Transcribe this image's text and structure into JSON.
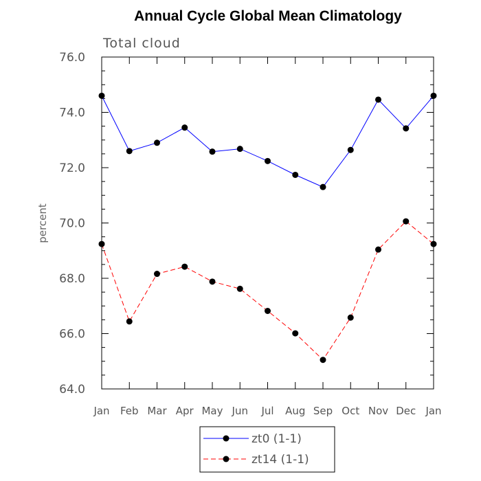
{
  "chart_data": {
    "type": "line",
    "title": "Annual Cycle Global Mean Climatology",
    "subtitle": "Total cloud",
    "xlabel": "",
    "ylabel": "percent",
    "categories": [
      "Jan",
      "Feb",
      "Mar",
      "Apr",
      "May",
      "Jun",
      "Jul",
      "Aug",
      "Sep",
      "Oct",
      "Nov",
      "Dec",
      "Jan"
    ],
    "ylim": [
      64.0,
      76.0
    ],
    "yticks": [
      "64.0",
      "66.0",
      "68.0",
      "70.0",
      "72.0",
      "74.0",
      "76.0"
    ],
    "grid": false,
    "legend_position": "bottom",
    "series": [
      {
        "name": "zt0 (1-1)",
        "color": "#0000ff",
        "line_style": "solid",
        "marker": "filled-circle",
        "values": [
          74.6,
          72.6,
          72.9,
          73.45,
          72.58,
          72.68,
          72.24,
          71.74,
          71.3,
          72.64,
          74.46,
          73.42,
          74.6
        ]
      },
      {
        "name": "zt14 (1-1)",
        "color": "#ff0000",
        "line_style": "dashed",
        "marker": "filled-circle",
        "values": [
          69.24,
          66.44,
          68.16,
          68.42,
          67.88,
          67.62,
          66.82,
          66.01,
          65.05,
          66.58,
          69.04,
          70.06,
          69.24
        ]
      }
    ]
  }
}
